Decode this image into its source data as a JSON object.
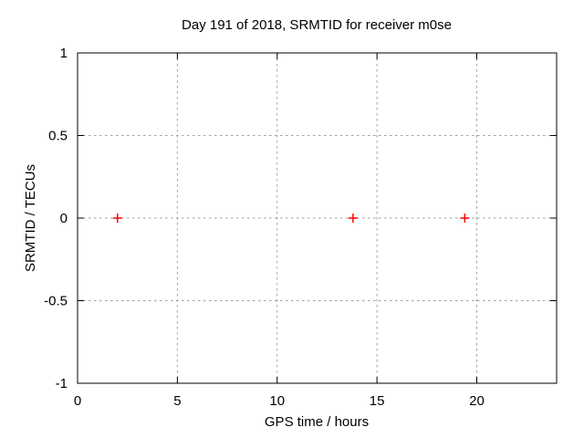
{
  "chart_data": {
    "type": "scatter",
    "title": "Day 191 of 2018, SRMTID for receiver m0se",
    "xlabel": "GPS time / hours",
    "ylabel": "SRMTID / TECUs",
    "xlim": [
      0,
      24
    ],
    "ylim": [
      -1,
      1
    ],
    "xticks": [
      0,
      5,
      10,
      15,
      20
    ],
    "yticks": [
      -1,
      -0.5,
      0,
      0.5,
      1
    ],
    "grid": true,
    "legend_position": "none",
    "background_color": "#ffffff",
    "frame_color": "#000000",
    "grid_color": "#a0a0a0",
    "text_color": "#000000",
    "series": [
      {
        "name": "SRMTID",
        "marker": "plus",
        "color": "#ff0000",
        "points": [
          [
            2.0,
            0.0
          ],
          [
            13.8,
            0.0
          ],
          [
            19.4,
            0.0
          ]
        ]
      }
    ]
  }
}
